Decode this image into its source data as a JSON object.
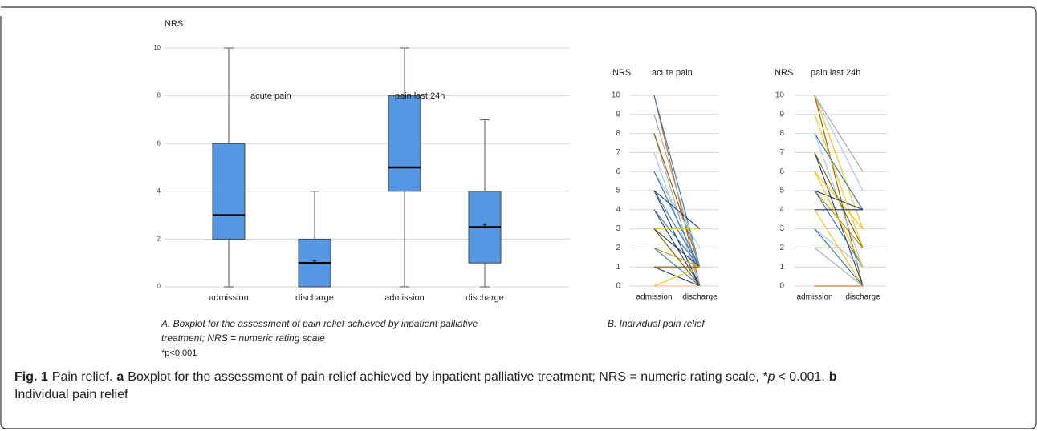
{
  "chart_data": [
    {
      "type": "box",
      "y_label": "NRS",
      "annotations": [
        "acute pain",
        "pain last 24h"
      ],
      "categories": [
        "admission",
        "discharge",
        "admission",
        "discharge"
      ],
      "boxes": [
        {
          "min": 0,
          "q1": 2,
          "median": 3,
          "q3": 6,
          "max": 10
        },
        {
          "min": 0,
          "q1": 0,
          "median": 1,
          "q3": 2,
          "max": 4
        },
        {
          "min": 0,
          "q1": 4,
          "median": 5,
          "q3": 8,
          "max": 10
        },
        {
          "min": 0,
          "q1": 1,
          "median": 2.5,
          "q3": 4,
          "max": 7
        }
      ],
      "marker": "*",
      "marked": [
        false,
        true,
        false,
        true
      ],
      "color": "#5597e3",
      "ylim": [
        0,
        10
      ],
      "yticks": [
        0,
        2,
        4,
        6,
        8,
        10
      ],
      "grid": true
    },
    {
      "type": "line",
      "title": "acute pain",
      "y_label": "NRS",
      "categories": [
        "admission",
        "discharge"
      ],
      "ylim": [
        0,
        10
      ],
      "yticks": [
        0,
        1,
        2,
        3,
        4,
        5,
        6,
        7,
        8,
        9,
        10
      ],
      "grid": true,
      "series": [
        {
          "color": "#c55a11",
          "values": [
            10,
            0
          ]
        },
        {
          "color": "#2e75b6",
          "values": [
            10,
            1
          ]
        },
        {
          "color": "#a5a5a5",
          "values": [
            8,
            0
          ]
        },
        {
          "color": "#7f6000",
          "values": [
            8,
            1
          ]
        },
        {
          "color": "#9dc3e6",
          "values": [
            7,
            0
          ]
        },
        {
          "color": "#9dc3e6",
          "values": [
            6,
            2
          ]
        },
        {
          "color": "#2e75b6",
          "values": [
            6,
            1
          ]
        },
        {
          "color": "#1f3864",
          "values": [
            5,
            0
          ]
        },
        {
          "color": "#2e75b6",
          "values": [
            5,
            1
          ]
        },
        {
          "color": "#1f3864",
          "values": [
            4,
            0
          ]
        },
        {
          "color": "#2e75b6",
          "values": [
            4,
            1
          ]
        },
        {
          "color": "#ffc000",
          "values": [
            3,
            3
          ]
        },
        {
          "color": "#1f3864",
          "values": [
            3,
            1
          ]
        },
        {
          "color": "#7f6000",
          "values": [
            3,
            0
          ]
        },
        {
          "color": "#bf9000",
          "values": [
            2,
            1
          ]
        },
        {
          "color": "#2e75b6",
          "values": [
            2,
            0
          ]
        },
        {
          "color": "#1f3864",
          "values": [
            1,
            0
          ]
        },
        {
          "color": "#7f6000",
          "values": [
            1,
            1
          ]
        },
        {
          "color": "#ffc000",
          "values": [
            0,
            1
          ]
        },
        {
          "color": "#f4b183",
          "values": [
            0,
            0
          ]
        },
        {
          "color": "#1f3864",
          "values": [
            5,
            3
          ]
        },
        {
          "color": "#a5a5a5",
          "values": [
            9,
            1
          ]
        }
      ]
    },
    {
      "type": "line",
      "title": "pain last 24h",
      "y_label": "NRS",
      "categories": [
        "admission",
        "discharge"
      ],
      "ylim": [
        0,
        10
      ],
      "yticks": [
        0,
        1,
        2,
        3,
        4,
        5,
        6,
        7,
        8,
        9,
        10
      ],
      "grid": true,
      "series": [
        {
          "color": "#a5a5a5",
          "values": [
            10,
            6
          ]
        },
        {
          "color": "#9dc3e6",
          "values": [
            10,
            5
          ]
        },
        {
          "color": "#ffc000",
          "values": [
            10,
            3
          ]
        },
        {
          "color": "#7f6000",
          "values": [
            10,
            0
          ]
        },
        {
          "color": "#ffc000",
          "values": [
            9,
            2
          ]
        },
        {
          "color": "#2e75b6",
          "values": [
            8,
            4
          ]
        },
        {
          "color": "#9dc3e6",
          "values": [
            8,
            1
          ]
        },
        {
          "color": "#1f3864",
          "values": [
            7,
            0
          ]
        },
        {
          "color": "#7f6000",
          "values": [
            7,
            2
          ]
        },
        {
          "color": "#ffc000",
          "values": [
            6,
            3
          ]
        },
        {
          "color": "#1f3864",
          "values": [
            5,
            4
          ]
        },
        {
          "color": "#bf9000",
          "values": [
            5,
            2
          ]
        },
        {
          "color": "#2e75b6",
          "values": [
            5,
            1
          ]
        },
        {
          "color": "#ffc000",
          "values": [
            4,
            0
          ]
        },
        {
          "color": "#1f3864",
          "values": [
            4,
            4
          ]
        },
        {
          "color": "#9dc3e6",
          "values": [
            3,
            1
          ]
        },
        {
          "color": "#2e75b6",
          "values": [
            3,
            0
          ]
        },
        {
          "color": "#c55a11",
          "values": [
            2,
            2
          ]
        },
        {
          "color": "#a5a5a5",
          "values": [
            2,
            0
          ]
        },
        {
          "color": "#c55a11",
          "values": [
            0,
            0
          ]
        },
        {
          "color": "#ffc000",
          "values": [
            6,
            1
          ]
        }
      ]
    }
  ],
  "caption_a": [
    "A. Boxplot for the assessment of pain relief achieved by inpatient palliative",
    "treatment; NRS = numeric rating scale"
  ],
  "caption_a_note": "*p<0.001",
  "caption_b": "B. Individual pain relief",
  "figure_caption": {
    "label": "Fig. 1",
    "title": "Pain relief.",
    "a": "a",
    "a_text": "Boxplot for the assessment of pain relief achieved by inpatient palliative treatment; NRS = numeric rating scale, *",
    "p": "p",
    "p_text": "< 0.001.",
    "b": "b",
    "b_text": "Individual pain relief"
  }
}
